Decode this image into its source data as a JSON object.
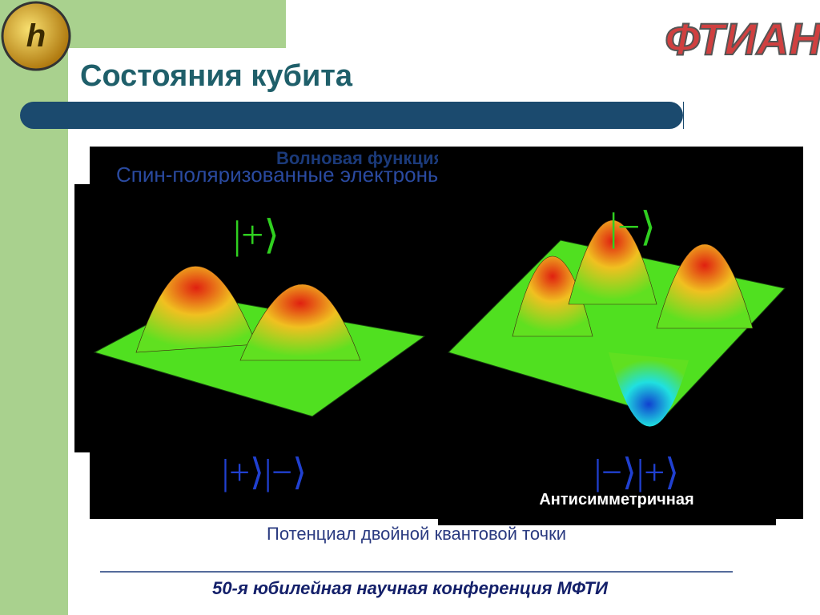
{
  "header": {
    "title": "Состояния кубита",
    "logo": "ФТИАН"
  },
  "figure": {
    "heading": "Волновая функция электрона в ДКТ",
    "subtitle": "Спин-поляризованные электроны:",
    "kets": [
      "|+⟩",
      "|−⟩",
      "|+⟩|−⟩",
      "|−⟩|+⟩"
    ],
    "label": "Антисимметричная",
    "caption": "Потенциал двойной квантовой точки"
  },
  "footer": {
    "text": "50-я юбилейная научная конференция МФТИ"
  }
}
